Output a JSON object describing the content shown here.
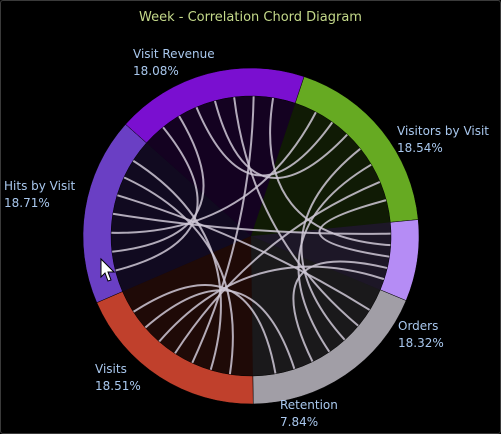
{
  "window": {
    "title": "Week - Correlation Chord Diagram"
  },
  "chart_data": {
    "type": "chord",
    "title": "Week - Correlation Chord Diagram",
    "segments": [
      {
        "name": "Visit Revenue",
        "percent_label": "18.08%",
        "value": 18.08,
        "color": "#6a3fc4"
      },
      {
        "name": "Visitors by Visit",
        "percent_label": "18.54%",
        "value": 18.54,
        "color": "#7a0fd0"
      },
      {
        "name": "Orders",
        "percent_label": "18.32%",
        "value": 18.32,
        "color": "#66aa22"
      },
      {
        "name": "Retention",
        "percent_label": "7.84%",
        "value": 7.84,
        "color": "#b58cf5"
      },
      {
        "name": "Visits",
        "percent_label": "18.51%",
        "value": 18.51,
        "color": "#a19ea6"
      },
      {
        "name": "Hits by Visit",
        "percent_label": "18.71%",
        "value": 18.71,
        "color": "#c0402c"
      }
    ],
    "links": [
      [
        0,
        1
      ],
      [
        0,
        1
      ],
      [
        0,
        2
      ],
      [
        0,
        3
      ],
      [
        0,
        4
      ],
      [
        0,
        5
      ],
      [
        0,
        5
      ],
      [
        1,
        2
      ],
      [
        1,
        2
      ],
      [
        1,
        4
      ],
      [
        1,
        5
      ],
      [
        1,
        3
      ],
      [
        2,
        4
      ],
      [
        2,
        4
      ],
      [
        2,
        5
      ],
      [
        2,
        3
      ],
      [
        3,
        4
      ],
      [
        3,
        5
      ],
      [
        4,
        5
      ],
      [
        4,
        5
      ]
    ]
  }
}
